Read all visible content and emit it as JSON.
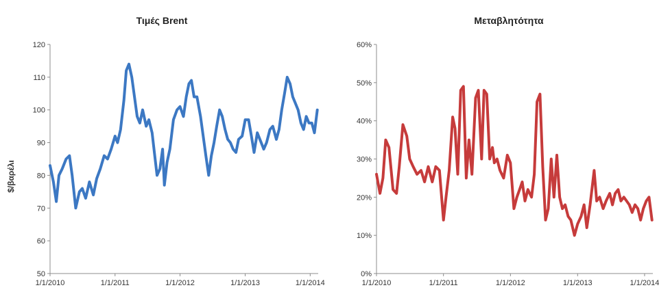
{
  "chart_data": [
    {
      "type": "line",
      "title": "Τιμές Brent",
      "ylabel": "$/βαρέλι",
      "xlabel": "",
      "ylim": [
        50,
        120
      ],
      "yticks": [
        "120",
        "110",
        "100",
        "90",
        "80",
        "70",
        "60",
        "50"
      ],
      "xlim": [
        "2010-01-01",
        "2014-02-15"
      ],
      "xticks": [
        "1/1/2010",
        "1/1/2011",
        "1/1/2012",
        "1/1/2013",
        "1/1/2014"
      ],
      "grid": false,
      "legend": "none",
      "color": "#3c78c3",
      "series": [
        {
          "x": [
            "2010-01-01",
            "2010-01-20",
            "2010-02-05",
            "2010-02-20",
            "2010-03-10",
            "2010-04-01",
            "2010-04-20",
            "2010-05-05",
            "2010-05-25",
            "2010-06-15",
            "2010-07-01",
            "2010-07-20",
            "2010-08-10",
            "2010-09-01",
            "2010-09-20",
            "2010-10-10",
            "2010-11-01",
            "2010-11-20",
            "2010-12-10",
            "2011-01-01",
            "2011-01-15",
            "2011-02-01",
            "2011-02-20",
            "2011-03-05",
            "2011-03-20",
            "2011-04-05",
            "2011-04-20",
            "2011-05-05",
            "2011-05-20",
            "2011-06-05",
            "2011-06-25",
            "2011-07-10",
            "2011-07-28",
            "2011-08-10",
            "2011-08-25",
            "2011-09-10",
            "2011-09-25",
            "2011-10-05",
            "2011-10-20",
            "2011-11-05",
            "2011-11-25",
            "2011-12-15",
            "2012-01-01",
            "2012-01-20",
            "2012-02-05",
            "2012-02-20",
            "2012-03-05",
            "2012-03-20",
            "2012-04-05",
            "2012-04-25",
            "2012-05-10",
            "2012-05-25",
            "2012-06-10",
            "2012-06-25",
            "2012-07-10",
            "2012-07-25",
            "2012-08-10",
            "2012-08-25",
            "2012-09-10",
            "2012-09-25",
            "2012-10-10",
            "2012-10-25",
            "2012-11-10",
            "2012-11-25",
            "2012-12-15",
            "2013-01-01",
            "2013-01-20",
            "2013-02-05",
            "2013-02-20",
            "2013-03-10",
            "2013-04-01",
            "2013-04-15",
            "2013-05-01",
            "2013-05-20",
            "2013-06-05",
            "2013-06-25",
            "2013-07-10",
            "2013-07-25",
            "2013-08-10",
            "2013-08-25",
            "2013-09-10",
            "2013-09-25",
            "2013-10-10",
            "2013-10-25",
            "2013-11-10",
            "2013-11-25",
            "2013-12-10",
            "2013-12-25",
            "2014-01-10",
            "2014-01-25",
            "2014-02-10"
          ],
          "values": [
            83,
            78,
            72,
            80,
            82,
            85,
            86,
            80,
            70,
            75,
            76,
            73,
            78,
            74,
            79,
            82,
            86,
            85,
            88,
            92,
            90,
            94,
            103,
            112,
            114,
            110,
            104,
            98,
            96,
            100,
            95,
            97,
            93,
            87,
            80,
            82,
            88,
            77,
            84,
            88,
            97,
            100,
            101,
            98,
            104,
            108,
            109,
            104,
            104,
            98,
            92,
            86,
            80,
            86,
            90,
            95,
            100,
            98,
            94,
            91,
            90,
            88,
            87,
            91,
            92,
            97,
            97,
            92,
            87,
            93,
            90,
            88,
            90,
            94,
            95,
            91,
            94,
            100,
            105,
            110,
            108,
            104,
            102,
            100,
            96,
            94,
            98,
            96,
            96,
            93,
            100
          ]
        }
      ]
    },
    {
      "type": "line",
      "title": "Μεταβλητότητα",
      "ylabel": "",
      "xlabel": "",
      "ylim": [
        0,
        0.6
      ],
      "yticks": [
        "60%",
        "50%",
        "40%",
        "30%",
        "20%",
        "10%",
        "0%"
      ],
      "xlim": [
        "2010-01-01",
        "2014-02-15"
      ],
      "xticks": [
        "1/1/2010",
        "1/1/2011",
        "1/1/2012",
        "1/1/2013",
        "1/1/2014"
      ],
      "grid": false,
      "legend": "none",
      "color": "#c63b3b",
      "series": [
        {
          "x": [
            "2010-01-01",
            "2010-01-20",
            "2010-02-05",
            "2010-02-20",
            "2010-03-10",
            "2010-04-01",
            "2010-04-20",
            "2010-05-05",
            "2010-05-25",
            "2010-06-15",
            "2010-07-01",
            "2010-07-20",
            "2010-08-10",
            "2010-09-01",
            "2010-09-20",
            "2010-10-10",
            "2010-11-01",
            "2010-11-20",
            "2010-12-10",
            "2011-01-01",
            "2011-01-15",
            "2011-02-01",
            "2011-02-20",
            "2011-03-05",
            "2011-03-20",
            "2011-04-05",
            "2011-04-20",
            "2011-05-05",
            "2011-05-20",
            "2011-06-05",
            "2011-06-25",
            "2011-07-10",
            "2011-07-28",
            "2011-08-10",
            "2011-08-25",
            "2011-09-10",
            "2011-09-25",
            "2011-10-05",
            "2011-10-20",
            "2011-11-05",
            "2011-11-25",
            "2011-12-15",
            "2012-01-01",
            "2012-01-20",
            "2012-02-05",
            "2012-02-20",
            "2012-03-05",
            "2012-03-20",
            "2012-04-05",
            "2012-04-25",
            "2012-05-10",
            "2012-05-25",
            "2012-06-10",
            "2012-06-25",
            "2012-07-10",
            "2012-07-25",
            "2012-08-10",
            "2012-08-25",
            "2012-09-10",
            "2012-09-25",
            "2012-10-10",
            "2012-10-25",
            "2012-11-10",
            "2012-11-25",
            "2012-12-15",
            "2013-01-01",
            "2013-01-20",
            "2013-02-05",
            "2013-02-20",
            "2013-03-10",
            "2013-04-01",
            "2013-04-15",
            "2013-05-01",
            "2013-05-20",
            "2013-06-05",
            "2013-06-25",
            "2013-07-10",
            "2013-07-25",
            "2013-08-10",
            "2013-08-25",
            "2013-09-10",
            "2013-09-25",
            "2013-10-10",
            "2013-10-25",
            "2013-11-10",
            "2013-11-25",
            "2013-12-10",
            "2013-12-25",
            "2014-01-10",
            "2014-01-25",
            "2014-02-10"
          ],
          "values": [
            0.26,
            0.21,
            0.25,
            0.35,
            0.33,
            0.22,
            0.21,
            0.28,
            0.39,
            0.36,
            0.3,
            0.28,
            0.26,
            0.27,
            0.24,
            0.28,
            0.24,
            0.28,
            0.27,
            0.14,
            0.2,
            0.27,
            0.41,
            0.38,
            0.26,
            0.48,
            0.49,
            0.25,
            0.35,
            0.26,
            0.46,
            0.48,
            0.3,
            0.48,
            0.47,
            0.3,
            0.33,
            0.29,
            0.3,
            0.27,
            0.25,
            0.31,
            0.29,
            0.17,
            0.2,
            0.22,
            0.24,
            0.19,
            0.22,
            0.2,
            0.26,
            0.45,
            0.47,
            0.28,
            0.14,
            0.17,
            0.3,
            0.2,
            0.31,
            0.2,
            0.17,
            0.18,
            0.15,
            0.14,
            0.1,
            0.13,
            0.15,
            0.18,
            0.12,
            0.18,
            0.27,
            0.19,
            0.2,
            0.17,
            0.19,
            0.21,
            0.18,
            0.21,
            0.22,
            0.19,
            0.2,
            0.19,
            0.18,
            0.16,
            0.18,
            0.17,
            0.14,
            0.17,
            0.19,
            0.2,
            0.14
          ]
        }
      ]
    }
  ]
}
